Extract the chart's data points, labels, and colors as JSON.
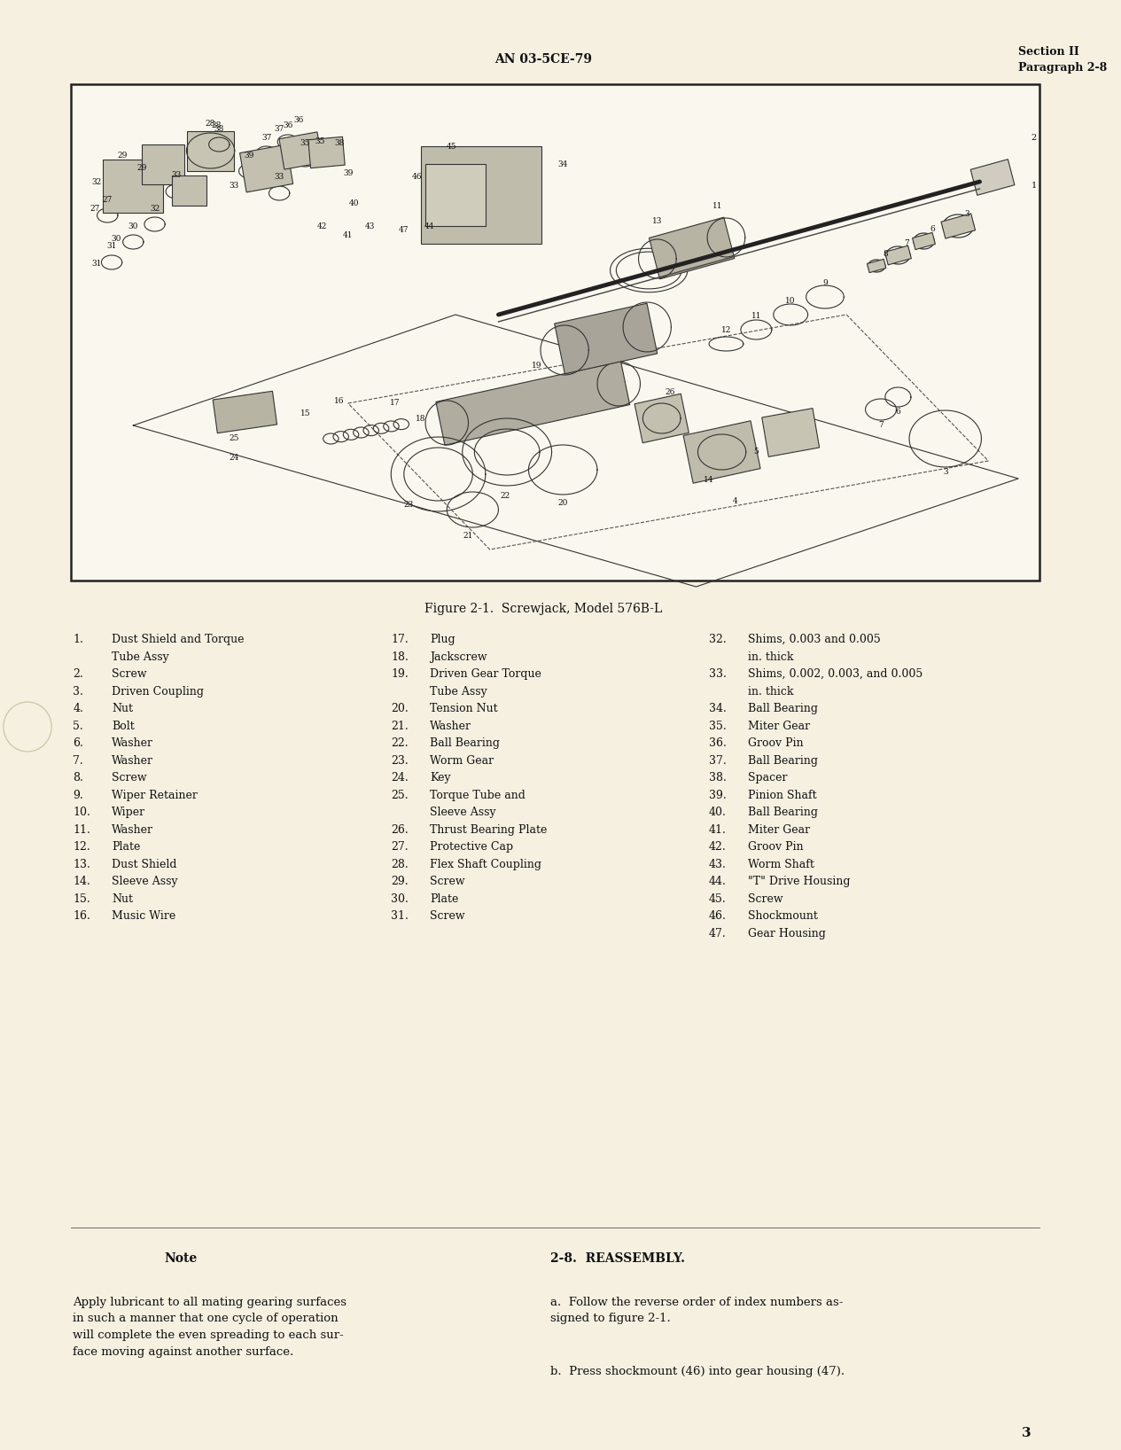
{
  "page_bg": "#f5f0e0",
  "text_color": "#111111",
  "header_center": "AN 03-5CE-79",
  "header_right_line1": "Section II",
  "header_right_line2": "Paragraph 2-8",
  "page_number": "3",
  "figure_caption": "Figure 2-1.  Screwjack, Model 576B-L",
  "note_title": "Note",
  "note_text": "Apply lubricant to all mating gearing surfaces\nin such a manner that one cycle of operation\nwill complete the even spreading to each sur-\nface moving against another surface.",
  "reassembly_title": "2-8.  REASSEMBLY.",
  "reassembly_para_a": "a.  Follow the reverse order of index numbers as-\nsigned to figure 2-1.",
  "reassembly_para_b": "b.  Press shockmount (46) into gear housing (47).",
  "parts_col1": [
    [
      "1.",
      "Dust Shield and Torque",
      "Tube Assy"
    ],
    [
      "2.",
      "Screw"
    ],
    [
      "3.",
      "Driven Coupling"
    ],
    [
      "4.",
      "Nut"
    ],
    [
      "5.",
      "Bolt"
    ],
    [
      "6.",
      "Washer"
    ],
    [
      "7.",
      "Washer"
    ],
    [
      "8.",
      "Screw"
    ],
    [
      "9.",
      "Wiper Retainer"
    ],
    [
      "10.",
      "Wiper"
    ],
    [
      "11.",
      "Washer"
    ],
    [
      "12.",
      "Plate"
    ],
    [
      "13.",
      "Dust Shield"
    ],
    [
      "14.",
      "Sleeve Assy"
    ],
    [
      "15.",
      "Nut"
    ],
    [
      "16.",
      "Music Wire"
    ]
  ],
  "parts_col2": [
    [
      "17.",
      "Plug"
    ],
    [
      "18.",
      "Jackscrew"
    ],
    [
      "19.",
      "Driven Gear Torque",
      "Tube Assy"
    ],
    [
      "20.",
      "Tension Nut"
    ],
    [
      "21.",
      "Washer"
    ],
    [
      "22.",
      "Ball Bearing"
    ],
    [
      "23.",
      "Worm Gear"
    ],
    [
      "24.",
      "Key"
    ],
    [
      "25.",
      "Torque Tube and",
      "Sleeve Assy"
    ],
    [
      "26.",
      "Thrust Bearing Plate"
    ],
    [
      "27.",
      "Protective Cap"
    ],
    [
      "28.",
      "Flex Shaft Coupling"
    ],
    [
      "29.",
      "Screw"
    ],
    [
      "30.",
      "Plate"
    ],
    [
      "31.",
      "Screw"
    ]
  ],
  "parts_col3": [
    [
      "32.",
      "Shims, 0.003 and 0.005",
      "in. thick"
    ],
    [
      "33.",
      "Shims, 0.002, 0.003, and 0.005",
      "in. thick"
    ],
    [
      "34.",
      "Ball Bearing"
    ],
    [
      "35.",
      "Miter Gear"
    ],
    [
      "36.",
      "Groov Pin"
    ],
    [
      "37.",
      "Ball Bearing"
    ],
    [
      "38.",
      "Spacer"
    ],
    [
      "39.",
      "Pinion Shaft"
    ],
    [
      "40.",
      "Ball Bearing"
    ],
    [
      "41.",
      "Miter Gear"
    ],
    [
      "42.",
      "Groov Pin"
    ],
    [
      "43.",
      "Worm Shaft"
    ],
    [
      "44.",
      "\"T\" Drive Housing"
    ],
    [
      "45.",
      "Screw"
    ],
    [
      "46.",
      "Shockmount"
    ],
    [
      "47.",
      "Gear Housing"
    ]
  ]
}
